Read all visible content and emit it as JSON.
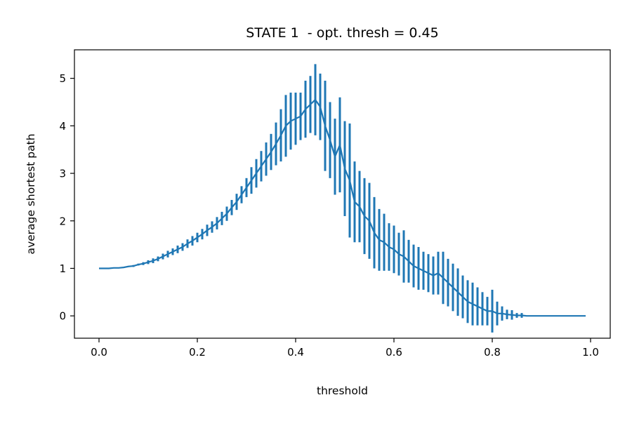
{
  "chart_data": {
    "type": "line",
    "title": "STATE 1  - opt. thresh = 0.45",
    "xlabel": "threshold",
    "ylabel": "average shortest path",
    "xlim": [
      -0.05,
      1.04
    ],
    "ylim": [
      -0.47,
      5.6
    ],
    "xticks": [
      0.0,
      0.2,
      0.4,
      0.6,
      0.8,
      1.0
    ],
    "xtick_labels": [
      "0.0",
      "0.2",
      "0.4",
      "0.6",
      "0.8",
      "1.0"
    ],
    "yticks": [
      0,
      1,
      2,
      3,
      4,
      5
    ],
    "ytick_labels": [
      "0",
      "1",
      "2",
      "3",
      "4",
      "5"
    ],
    "grid": false,
    "legend": "none",
    "series_color": "#1f77b4",
    "x": [
      0.0,
      0.01,
      0.02,
      0.03,
      0.04,
      0.05,
      0.06,
      0.07,
      0.08,
      0.09,
      0.1,
      0.11,
      0.12,
      0.13,
      0.14,
      0.15,
      0.16,
      0.17,
      0.18,
      0.19,
      0.2,
      0.21,
      0.22,
      0.23,
      0.24,
      0.25,
      0.26,
      0.27,
      0.28,
      0.29,
      0.3,
      0.31,
      0.32,
      0.33,
      0.34,
      0.35,
      0.36,
      0.37,
      0.38,
      0.39,
      0.4,
      0.41,
      0.42,
      0.43,
      0.44,
      0.45,
      0.46,
      0.47,
      0.48,
      0.49,
      0.5,
      0.51,
      0.52,
      0.53,
      0.54,
      0.55,
      0.56,
      0.57,
      0.58,
      0.59,
      0.6,
      0.61,
      0.62,
      0.63,
      0.64,
      0.65,
      0.66,
      0.67,
      0.68,
      0.69,
      0.7,
      0.71,
      0.72,
      0.73,
      0.74,
      0.75,
      0.76,
      0.77,
      0.78,
      0.79,
      0.8,
      0.81,
      0.82,
      0.83,
      0.84,
      0.85,
      0.86,
      0.87,
      0.88,
      0.89,
      0.9,
      0.91,
      0.92,
      0.93,
      0.94,
      0.95,
      0.96,
      0.97,
      0.98,
      0.99
    ],
    "y": [
      1.0,
      1.0,
      1.0,
      1.01,
      1.01,
      1.02,
      1.04,
      1.05,
      1.08,
      1.1,
      1.13,
      1.16,
      1.2,
      1.25,
      1.3,
      1.35,
      1.4,
      1.45,
      1.52,
      1.58,
      1.65,
      1.72,
      1.8,
      1.87,
      1.95,
      2.05,
      2.15,
      2.28,
      2.4,
      2.55,
      2.7,
      2.85,
      3.0,
      3.15,
      3.3,
      3.45,
      3.62,
      3.8,
      4.0,
      4.1,
      4.15,
      4.2,
      4.35,
      4.45,
      4.55,
      4.4,
      4.0,
      3.7,
      3.35,
      3.6,
      3.1,
      2.85,
      2.4,
      2.3,
      2.1,
      2.0,
      1.75,
      1.6,
      1.55,
      1.45,
      1.4,
      1.3,
      1.25,
      1.15,
      1.05,
      1.0,
      0.95,
      0.9,
      0.85,
      0.9,
      0.8,
      0.7,
      0.6,
      0.5,
      0.4,
      0.3,
      0.25,
      0.2,
      0.15,
      0.1,
      0.1,
      0.05,
      0.05,
      0.03,
      0.02,
      0.01,
      0.01,
      0.0,
      0.0,
      0.0,
      0.0,
      0.0,
      0.0,
      0.0,
      0.0,
      0.0,
      0.0,
      0.0,
      0.0,
      0.0
    ],
    "err": [
      0.0,
      0.0,
      0.0,
      0.0,
      0.0,
      0.01,
      0.01,
      0.02,
      0.02,
      0.03,
      0.04,
      0.05,
      0.05,
      0.06,
      0.07,
      0.07,
      0.08,
      0.08,
      0.09,
      0.1,
      0.1,
      0.11,
      0.12,
      0.12,
      0.13,
      0.14,
      0.15,
      0.16,
      0.17,
      0.18,
      0.2,
      0.28,
      0.3,
      0.32,
      0.35,
      0.38,
      0.45,
      0.55,
      0.65,
      0.6,
      0.55,
      0.5,
      0.6,
      0.6,
      0.75,
      0.7,
      0.95,
      0.8,
      0.8,
      1.0,
      1.0,
      1.2,
      0.85,
      0.75,
      0.8,
      0.8,
      0.75,
      0.65,
      0.6,
      0.5,
      0.5,
      0.45,
      0.55,
      0.45,
      0.45,
      0.45,
      0.4,
      0.4,
      0.4,
      0.45,
      0.55,
      0.5,
      0.5,
      0.5,
      0.45,
      0.45,
      0.45,
      0.4,
      0.35,
      0.3,
      0.45,
      0.25,
      0.15,
      0.1,
      0.1,
      0.05,
      0.05,
      0.0,
      0.0,
      0.0,
      0.0,
      0.0,
      0.0,
      0.0,
      0.0,
      0.0,
      0.0,
      0.0,
      0.0,
      0.0
    ]
  }
}
